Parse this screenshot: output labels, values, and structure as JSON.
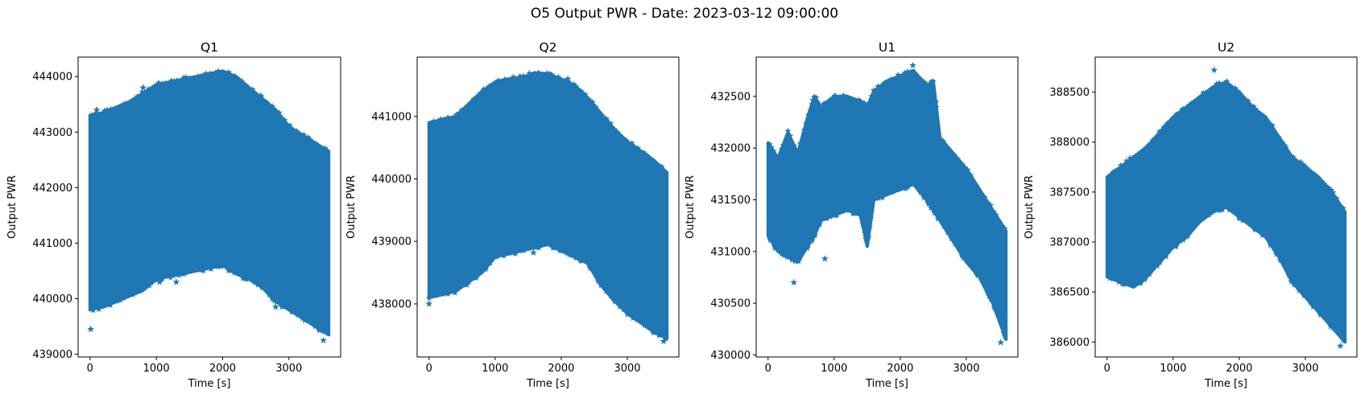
{
  "figure": {
    "suptitle": "O5 Output PWR - Date: 2023-03-12 09:00:00"
  },
  "chart_data": [
    {
      "type": "scatter",
      "title": "Q1",
      "xlabel": "Time [s]",
      "ylabel": "Output PWR",
      "xlim": [
        -180,
        3780
      ],
      "ylim": [
        438950,
        444350
      ],
      "xticks": [
        0,
        1000,
        2000,
        3000
      ],
      "yticks": [
        439000,
        440000,
        441000,
        442000,
        443000,
        444000
      ],
      "grid": false,
      "marker": "star",
      "color": "#1f77b4",
      "series": [
        {
          "x": [
            0,
            200,
            400,
            600,
            800,
            1000,
            1200,
            1400,
            1600,
            1800,
            2000,
            2200,
            2400,
            2600,
            2800,
            3000,
            3200,
            3400,
            3600
          ],
          "y_upper": [
            443300,
            443350,
            443450,
            443550,
            443700,
            443850,
            443900,
            443950,
            444000,
            444050,
            444100,
            444000,
            443800,
            443600,
            443400,
            443100,
            442950,
            442800,
            442650
          ],
          "y_lower": [
            439800,
            439850,
            439950,
            440050,
            440150,
            440350,
            440400,
            440450,
            440500,
            440550,
            440600,
            440450,
            440350,
            440200,
            439950,
            439800,
            439650,
            439500,
            439350
          ],
          "outliers": [
            [
              10,
              439450
            ],
            [
              100,
              443400
            ],
            [
              800,
              443800
            ],
            [
              1050,
              440300
            ],
            [
              1300,
              440300
            ],
            [
              2250,
              443850
            ],
            [
              2600,
              443550
            ],
            [
              2800,
              439850
            ],
            [
              3450,
              442700
            ],
            [
              3520,
              439250
            ]
          ]
        }
      ]
    },
    {
      "type": "scatter",
      "title": "Q2",
      "xlabel": "Time [s]",
      "ylabel": "Output PWR",
      "xlim": [
        -180,
        3780
      ],
      "ylim": [
        437150,
        441950
      ],
      "xticks": [
        0,
        1000,
        2000,
        3000
      ],
      "yticks": [
        438000,
        439000,
        440000,
        441000
      ],
      "grid": false,
      "marker": "star",
      "color": "#1f77b4",
      "series": [
        {
          "x": [
            0,
            200,
            400,
            600,
            800,
            1000,
            1200,
            1400,
            1600,
            1800,
            2000,
            2200,
            2400,
            2600,
            2800,
            3000,
            3200,
            3400,
            3600
          ],
          "y_upper": [
            440900,
            440950,
            441000,
            441200,
            441400,
            441550,
            441600,
            441620,
            441700,
            441680,
            441600,
            441500,
            441300,
            441050,
            440800,
            440600,
            440450,
            440300,
            440100
          ],
          "y_lower": [
            438100,
            438150,
            438200,
            438350,
            438500,
            438750,
            438800,
            438850,
            438900,
            438950,
            438850,
            438750,
            438650,
            438300,
            438050,
            437850,
            437700,
            437550,
            437450
          ],
          "outliers": [
            [
              0,
              438000
            ],
            [
              1580,
              438820
            ],
            [
              1850,
              441650
            ],
            [
              2100,
              441600
            ],
            [
              2400,
              441100
            ],
            [
              3550,
              437400
            ]
          ]
        }
      ]
    },
    {
      "type": "scatter",
      "title": "U1",
      "xlabel": "Time [s]",
      "ylabel": "Output PWR",
      "xlim": [
        -180,
        3780
      ],
      "ylim": [
        429980,
        432880
      ],
      "xticks": [
        0,
        1000,
        2000,
        3000
      ],
      "yticks": [
        430000,
        430500,
        431000,
        431500,
        432000,
        432500
      ],
      "grid": false,
      "marker": "star",
      "color": "#1f77b4",
      "series": [
        {
          "x": [
            0,
            150,
            300,
            450,
            600,
            700,
            800,
            1000,
            1200,
            1400,
            1500,
            1600,
            1800,
            2000,
            2200,
            2400,
            2500,
            2600,
            2800,
            3000,
            3200,
            3400,
            3600
          ],
          "y_upper": [
            432050,
            431900,
            432150,
            431950,
            432300,
            432500,
            432400,
            432500,
            432500,
            432450,
            432400,
            432550,
            432650,
            432700,
            432750,
            432600,
            432650,
            432100,
            431950,
            431800,
            431600,
            431400,
            431200
          ],
          "y_lower": [
            431150,
            431000,
            430950,
            430900,
            431050,
            431150,
            431300,
            431350,
            431400,
            431350,
            431050,
            431500,
            431550,
            431600,
            431650,
            431500,
            431400,
            431300,
            431100,
            430900,
            430750,
            430500,
            430150
          ],
          "outliers": [
            [
              390,
              430700
            ],
            [
              860,
              430930
            ],
            [
              2190,
              432800
            ],
            [
              3520,
              430120
            ]
          ]
        }
      ]
    },
    {
      "type": "scatter",
      "title": "U2",
      "xlabel": "Time [s]",
      "ylabel": "Output PWR",
      "xlim": [
        -180,
        3780
      ],
      "ylim": [
        385850,
        388850
      ],
      "xticks": [
        0,
        1000,
        2000,
        3000
      ],
      "yticks": [
        386000,
        386500,
        387000,
        387500,
        388000,
        388500
      ],
      "grid": false,
      "marker": "star",
      "color": "#1f77b4",
      "series": [
        {
          "x": [
            0,
            200,
            400,
            600,
            800,
            1000,
            1200,
            1400,
            1600,
            1800,
            2000,
            2200,
            2400,
            2600,
            2800,
            3000,
            3200,
            3400,
            3600
          ],
          "y_upper": [
            387650,
            387750,
            387850,
            387950,
            388100,
            388250,
            388350,
            388450,
            388550,
            388600,
            388500,
            388350,
            388250,
            388050,
            387850,
            387750,
            387650,
            387500,
            387300
          ],
          "y_lower": [
            386650,
            386600,
            386550,
            386650,
            386800,
            386950,
            387050,
            387200,
            387300,
            387350,
            387250,
            387150,
            387050,
            386850,
            386600,
            386450,
            386300,
            386150,
            386000
          ],
          "outliers": [
            [
              1620,
              388720
            ],
            [
              3530,
              385960
            ]
          ]
        }
      ]
    }
  ]
}
